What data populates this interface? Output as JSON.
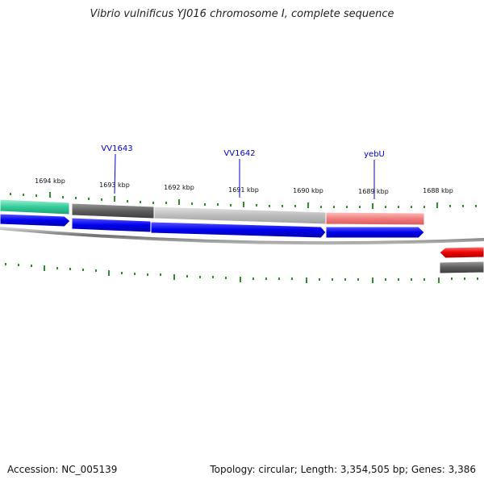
{
  "title": "Vibrio vulnificus YJ016 chromosome I, complete sequence",
  "footer": {
    "accession": "Accession: NC_005139",
    "summary": "Topology: circular; Length: 3,354,505 bp; Genes: 3,386"
  },
  "ruler": {
    "tick_labels": [
      "1694 kbp",
      "1693 kbp",
      "1692 kbp",
      "1691 kbp",
      "1690 kbp",
      "1689 kbp",
      "1688 kbp"
    ]
  },
  "genes": [
    {
      "label": "VV1643"
    },
    {
      "label": "VV1642"
    },
    {
      "label": "yebU"
    }
  ],
  "colors": {
    "label_blue": "#0000cc",
    "tick_green": "#2e8b2e",
    "cds_blue": "#0000ee",
    "teal_feature": "#33cc99",
    "dark_grey_feature": "#666666",
    "light_grey_feature": "#c0c0c0",
    "pink_feature": "#f08080",
    "red_feature": "#ee0000",
    "backbone": "#808080"
  }
}
